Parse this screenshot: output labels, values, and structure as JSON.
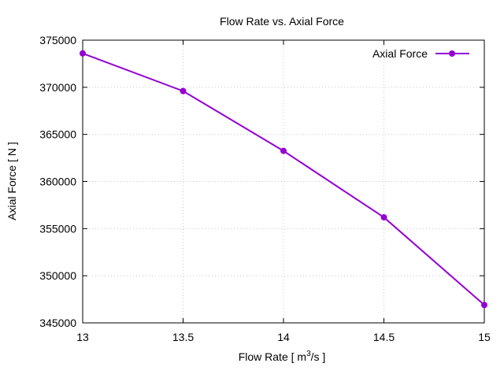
{
  "chart_data": {
    "type": "line",
    "title": "Flow Rate vs. Axial Force",
    "xlabel": "Flow Rate [ m",
    "xlabel_sup": "3",
    "xlabel_suffix": "/s ]",
    "ylabel": "Axial Force [ N ]",
    "xlim": [
      13,
      15
    ],
    "ylim": [
      345000,
      375000
    ],
    "xticks": [
      "13",
      "13.5",
      "14",
      "14.5",
      "15"
    ],
    "xtick_values": [
      13,
      13.5,
      14,
      14.5,
      15
    ],
    "yticks": [
      "345000",
      "350000",
      "355000",
      "360000",
      "365000",
      "370000",
      "375000"
    ],
    "ytick_values": [
      345000,
      350000,
      355000,
      360000,
      365000,
      370000,
      375000
    ],
    "grid": true,
    "legend_position": "top-right",
    "series": [
      {
        "name": "Axial Force",
        "color": "#9400d3",
        "x": [
          13,
          13.5,
          14,
          14.5,
          15
        ],
        "y": [
          373600,
          369600,
          363250,
          356200,
          346900
        ]
      }
    ]
  }
}
